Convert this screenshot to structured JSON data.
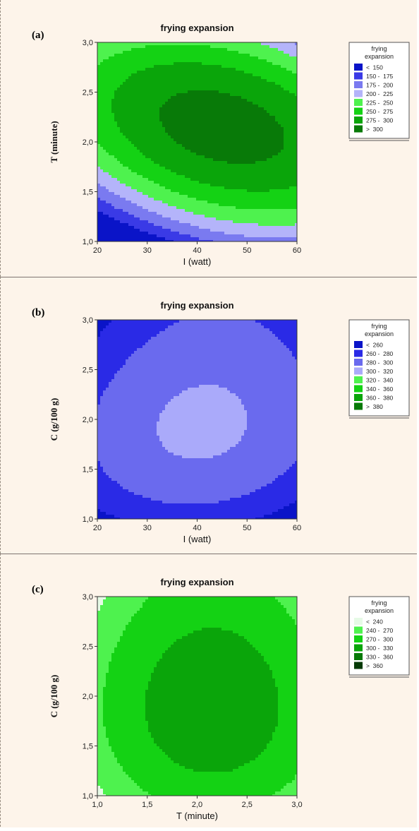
{
  "chart_data": [
    {
      "type": "contour",
      "panel_label": "(a)",
      "title": "frying expansion",
      "xlabel": "I (watt)",
      "ylabel": "T (minute)",
      "xlim": [
        20,
        60
      ],
      "ylim": [
        1.0,
        3.0
      ],
      "x_ticks": [
        "20",
        "30",
        "40",
        "50",
        "60"
      ],
      "y_ticks": [
        "1,0",
        "1,5",
        "2,0",
        "2,5",
        "3,0"
      ],
      "model": {
        "center_x": 45,
        "center_y": 2.15,
        "peak": 312,
        "a": 0.085,
        "b": 100,
        "cross": -1.9
      },
      "legend": {
        "title": [
          "frying",
          "expansion"
        ],
        "levels": [
          150,
          175,
          200,
          225,
          250,
          275,
          300
        ],
        "labels": [
          "<  150",
          "150 -  175",
          "175 -  200",
          "200 -  225",
          "225 -  250",
          "250 -  275",
          "275 -  300",
          ">  300"
        ],
        "colors": [
          "#0a14c8",
          "#3a3ae6",
          "#7a7af0",
          "#b4b4fa",
          "#4ef24e",
          "#14d214",
          "#0aa50a",
          "#087a08"
        ]
      }
    },
    {
      "type": "contour",
      "panel_label": "(b)",
      "title": "frying expansion",
      "xlabel": "I (watt)",
      "ylabel": "C (g/100 g)",
      "xlim": [
        20,
        60
      ],
      "ylim": [
        1.0,
        3.0
      ],
      "x_ticks": [
        "20",
        "30",
        "40",
        "50",
        "60"
      ],
      "y_ticks": [
        "1,0",
        "1,5",
        "2,0",
        "2,5",
        "3,0"
      ],
      "model": {
        "center_x": 41,
        "center_y": 1.95,
        "peak": 304,
        "a": 0.05,
        "b": 30,
        "cross": 0.3,
        "c3": 8.0
      },
      "legend": {
        "title": [
          "frying",
          "expansion"
        ],
        "levels": [
          260,
          280,
          300,
          320,
          340,
          360,
          380
        ],
        "labels": [
          "<  260",
          "260 -  280",
          "280 -  300",
          "300 -  320",
          "320 -  340",
          "340 -  360",
          "360 -  380",
          ">  380"
        ],
        "colors": [
          "#0a14c8",
          "#2a2ae6",
          "#6a6aee",
          "#aaaafa",
          "#4ef24e",
          "#14d214",
          "#0aa50a",
          "#087a08"
        ]
      }
    },
    {
      "type": "contour",
      "panel_label": "(c)",
      "title": "frying expansion",
      "xlabel": "T (minute)",
      "ylabel": "C (g/100 g)",
      "xlim": [
        1.0,
        3.0
      ],
      "ylim": [
        1.0,
        3.0
      ],
      "x_ticks": [
        "1,0",
        "1,5",
        "2,0",
        "2,5",
        "3,0"
      ],
      "y_ticks": [
        "1,0",
        "1,5",
        "2,0",
        "2,5",
        "3,0"
      ],
      "model": {
        "center_x": 2.15,
        "center_y": 1.9,
        "peak": 318,
        "a": 40,
        "b": 35,
        "cross": 0,
        "c3": 6.0
      },
      "legend": {
        "title": [
          "frying",
          "expansion"
        ],
        "levels": [
          240,
          270,
          300,
          330,
          360
        ],
        "labels": [
          "<  240",
          "240 -  270",
          "270 -  300",
          "300 -  330",
          "330 -  360",
          ">  360"
        ],
        "colors": [
          "#e6fae6",
          "#4ef24e",
          "#14d214",
          "#0aa50a",
          "#087a08",
          "#053a05"
        ]
      }
    }
  ]
}
